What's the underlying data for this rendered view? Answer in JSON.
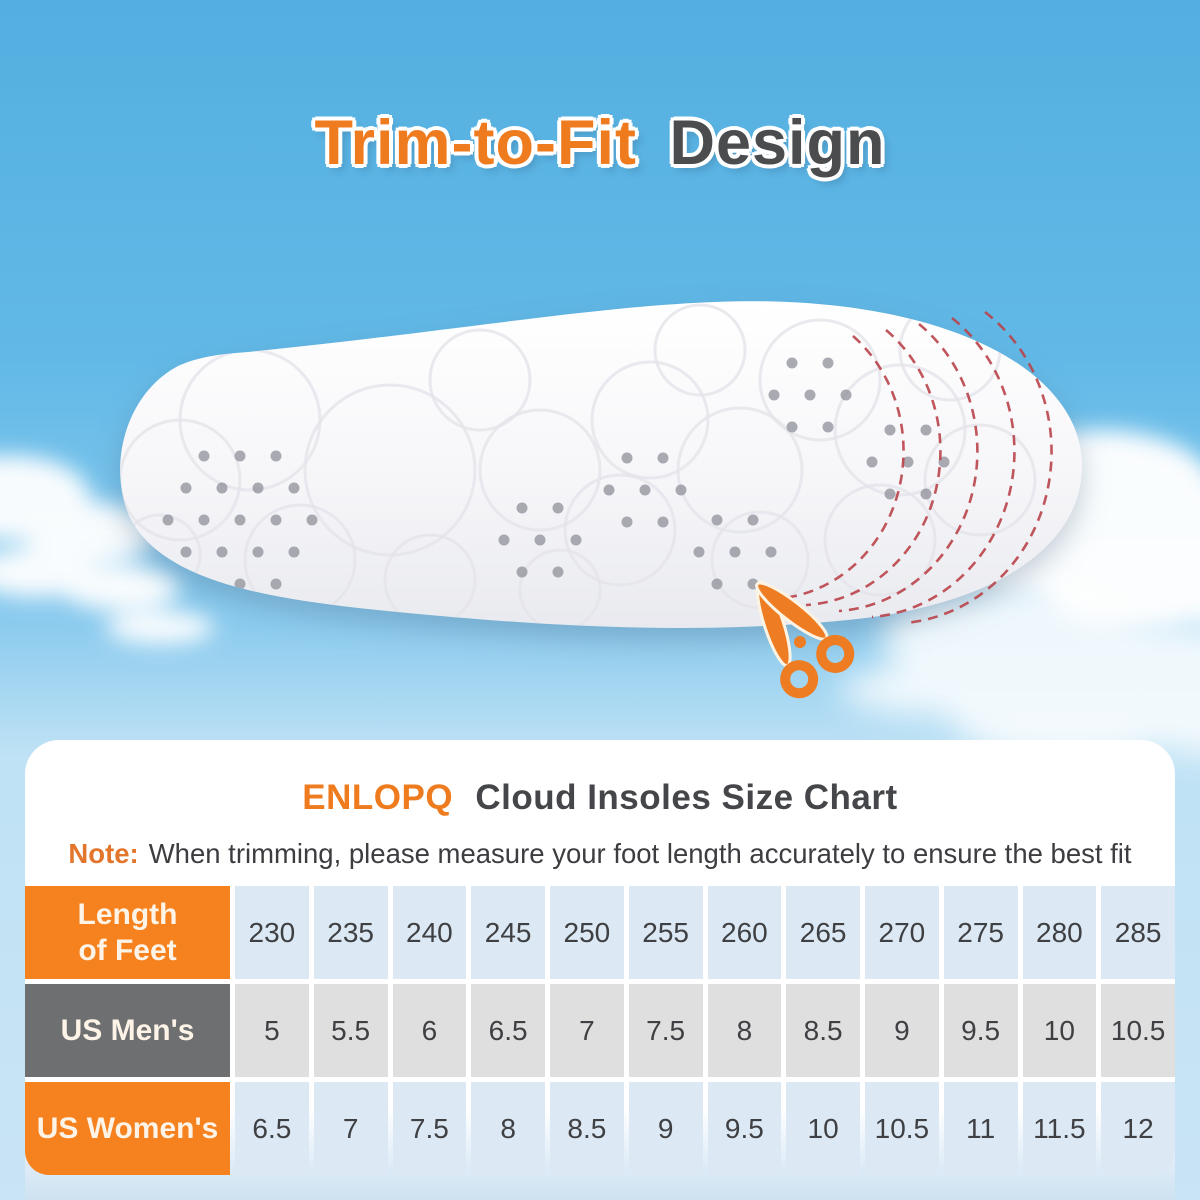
{
  "hero": {
    "title_highlight": "Trim-to-Fit",
    "title_rest": "Design",
    "trim_line_count": 5
  },
  "size_chart": {
    "brand": "ENLOPQ",
    "title_rest": "Cloud Insoles Size Chart",
    "note_label": "Note:",
    "note_text": "When trimming, please measure your foot length accurately to ensure the best fit"
  },
  "chart_data": {
    "type": "table",
    "title": "ENLOPQ Cloud Insoles Size Chart",
    "rows": [
      {
        "header": "Length\nof Feet",
        "values": [
          "230",
          "235",
          "240",
          "245",
          "250",
          "255",
          "260",
          "265",
          "270",
          "275",
          "280",
          "285"
        ]
      },
      {
        "header": "US Men's",
        "values": [
          "5",
          "5.5",
          "6",
          "6.5",
          "7",
          "7.5",
          "8",
          "8.5",
          "9",
          "9.5",
          "10",
          "10.5"
        ]
      },
      {
        "header": "US Women's",
        "values": [
          "6.5",
          "7",
          "7.5",
          "8",
          "8.5",
          "9",
          "9.5",
          "10",
          "10.5",
          "11",
          "11.5",
          "12"
        ]
      }
    ]
  },
  "icons": {
    "scissors": "scissors-icon"
  },
  "colors": {
    "accent_orange": "#ef7b1f",
    "title_gray": "#4b4c4e",
    "header_gray": "#6e6f71",
    "cell_blue": "#dce9f4",
    "cell_gray": "#dfdfdf",
    "trim_line_red": "#b9444a",
    "sky_top": "#53afe0",
    "sky_bottom": "#c9e4f4"
  }
}
